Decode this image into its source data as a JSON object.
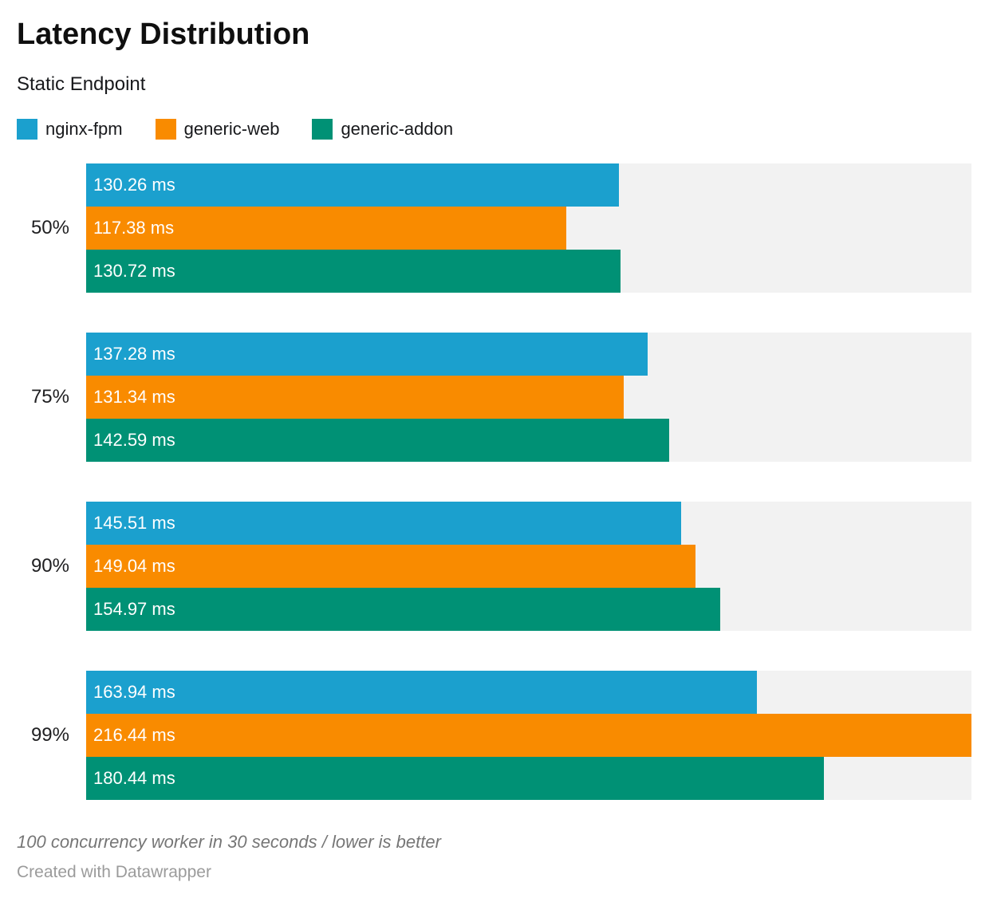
{
  "header": {
    "title": "Latency Distribution",
    "subtitle": "Static Endpoint"
  },
  "chart_data": {
    "type": "bar",
    "orientation": "horizontal",
    "title": "Latency Distribution",
    "subtitle": "Static Endpoint",
    "categories": [
      "50%",
      "75%",
      "90%",
      "99%"
    ],
    "series": [
      {
        "name": "nginx-fpm",
        "color": "#1BA0CE",
        "values": [
          130.26,
          137.28,
          145.51,
          163.94
        ],
        "labels": [
          "130.26 ms",
          "137.28 ms",
          "145.51 ms",
          "163.94 ms"
        ]
      },
      {
        "name": "generic-web",
        "color": "#F98B00",
        "values": [
          117.38,
          131.34,
          149.04,
          216.44
        ],
        "labels": [
          "117.38 ms",
          "131.34 ms",
          "149.04 ms",
          "216.44 ms"
        ]
      },
      {
        "name": "generic-addon",
        "color": "#009175",
        "values": [
          130.72,
          142.59,
          154.97,
          180.44
        ],
        "labels": [
          "130.72 ms",
          "142.59 ms",
          "154.97 ms",
          "180.44 ms"
        ]
      }
    ],
    "unit": "ms",
    "xlim": [
      0,
      216.44
    ],
    "track_color": "#F2F2F2",
    "legend_position": "top",
    "grid": false
  },
  "footer": {
    "notes": "100 concurrency worker in 30 seconds / lower is better",
    "credit": "Created with Datawrapper"
  }
}
